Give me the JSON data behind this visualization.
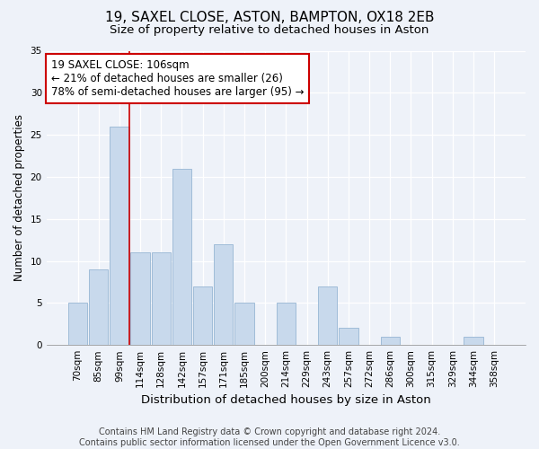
{
  "title": "19, SAXEL CLOSE, ASTON, BAMPTON, OX18 2EB",
  "subtitle": "Size of property relative to detached houses in Aston",
  "xlabel": "Distribution of detached houses by size in Aston",
  "ylabel": "Number of detached properties",
  "categories": [
    "70sqm",
    "85sqm",
    "99sqm",
    "114sqm",
    "128sqm",
    "142sqm",
    "157sqm",
    "171sqm",
    "185sqm",
    "200sqm",
    "214sqm",
    "229sqm",
    "243sqm",
    "257sqm",
    "272sqm",
    "286sqm",
    "300sqm",
    "315sqm",
    "329sqm",
    "344sqm",
    "358sqm"
  ],
  "values": [
    5,
    9,
    26,
    11,
    11,
    21,
    7,
    12,
    5,
    0,
    5,
    0,
    7,
    2,
    0,
    1,
    0,
    0,
    0,
    1,
    0
  ],
  "bar_color": "#c8d9ec",
  "bar_edge_color": "#a0bcd8",
  "vline_x_idx": 2,
  "vline_color": "#cc0000",
  "ylim": [
    0,
    35
  ],
  "yticks": [
    0,
    5,
    10,
    15,
    20,
    25,
    30,
    35
  ],
  "annotation_title": "19 SAXEL CLOSE: 106sqm",
  "annotation_line1": "← 21% of detached houses are smaller (26)",
  "annotation_line2": "78% of semi-detached houses are larger (95) →",
  "annotation_box_color": "#ffffff",
  "annotation_box_edge": "#cc0000",
  "footer_line1": "Contains HM Land Registry data © Crown copyright and database right 2024.",
  "footer_line2": "Contains public sector information licensed under the Open Government Licence v3.0.",
  "background_color": "#eef2f9",
  "title_fontsize": 11,
  "subtitle_fontsize": 9.5,
  "xlabel_fontsize": 9.5,
  "ylabel_fontsize": 8.5,
  "tick_fontsize": 7.5,
  "footer_fontsize": 7
}
